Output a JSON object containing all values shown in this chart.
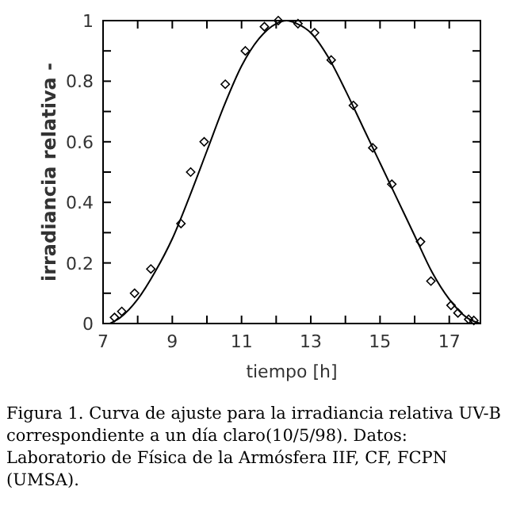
{
  "chart_data": {
    "type": "scatter",
    "xlabel": "tiempo [h]",
    "ylabel": "irradiancia relativa -",
    "xlim": [
      7,
      17.9
    ],
    "ylim": [
      0,
      1
    ],
    "xticks": [
      7,
      {
        "value": 8,
        "label": null
      },
      9,
      {
        "value": 10,
        "label": null
      },
      11,
      {
        "value": 12,
        "label": null
      },
      13,
      {
        "value": 14,
        "label": null
      },
      15,
      {
        "value": 16,
        "label": null
      },
      17
    ],
    "yticks": [
      0,
      {
        "value": 0.1,
        "label": null
      },
      0.2,
      {
        "value": 0.3,
        "label": null
      },
      0.4,
      {
        "value": 0.5,
        "label": null
      },
      0.6,
      {
        "value": 0.7,
        "label": null
      },
      0.8,
      {
        "value": 0.9,
        "label": null
      },
      1
    ],
    "marker": "diamond",
    "grid": false,
    "annotations": [
      "Figura 1. Curva de ajuste para la irradiancia relativa UV-B correspondiente a un día claro(10/5/98). Datos: Laboratorio de Física de la Armósfera IIF, CF, FCPN (UMSA)."
    ],
    "series": [
      {
        "color": "#000000",
        "x": [
          7.33,
          7.54,
          7.91,
          8.38,
          9.25,
          9.53,
          9.92,
          10.53,
          11.11,
          11.66,
          12.06,
          12.63,
          13.11,
          13.59,
          14.23,
          14.79,
          15.34,
          16.17,
          16.47,
          17.05,
          17.25,
          17.56,
          17.71
        ],
        "values": [
          0.02,
          0.04,
          0.1,
          0.18,
          0.33,
          0.5,
          0.6,
          0.79,
          0.9,
          0.98,
          1.0,
          0.99,
          0.96,
          0.87,
          0.72,
          0.58,
          0.46,
          0.27,
          0.14,
          0.06,
          0.035,
          0.014,
          0.01
        ]
      },
      {
        "type": "line",
        "color": "#000000",
        "marker": "none",
        "x": [
          7.2,
          7.5,
          8,
          8.5,
          9,
          9.5,
          10,
          10.5,
          11,
          11.5,
          12,
          12.3,
          12.6,
          13,
          13.5,
          14,
          14.5,
          15,
          15.5,
          16,
          16.5,
          17,
          17.5,
          17.9
        ],
        "values": [
          0,
          0.02,
          0.08,
          0.17,
          0.28,
          0.42,
          0.57,
          0.72,
          0.85,
          0.94,
          0.99,
          1.0,
          0.99,
          0.96,
          0.88,
          0.77,
          0.65,
          0.53,
          0.41,
          0.29,
          0.17,
          0.08,
          0.02,
          0
        ]
      }
    ]
  }
}
